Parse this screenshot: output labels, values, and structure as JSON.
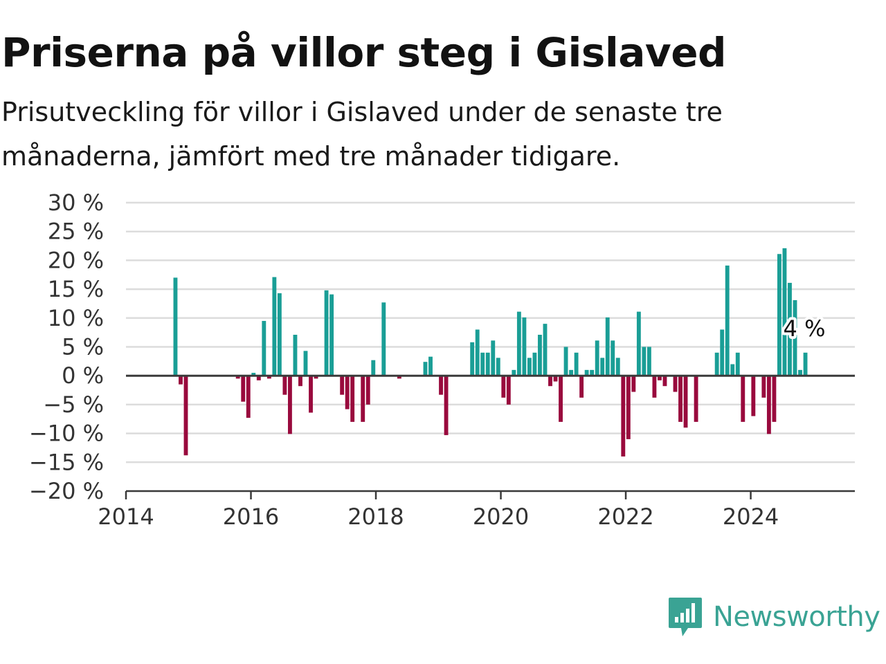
{
  "header": {
    "title": "Priserna på villor steg i Gislaved",
    "subtitle": "Prisutveckling för villor i Gislaved under de senaste tre månaderna, jämfört med tre månader tidigare."
  },
  "brand": {
    "name": "Newsworthy",
    "icon": "newsworthy-logo-icon",
    "color": "#3aa394"
  },
  "chart_data": {
    "type": "bar",
    "x_start": "2014-01",
    "x_end": "2025-09",
    "x_ticks": [
      "2014",
      "2016",
      "2018",
      "2020",
      "2022",
      "2024"
    ],
    "y_ticks": [
      "30 %",
      "25 %",
      "20 %",
      "15 %",
      "10 %",
      "5 %",
      "0 %",
      "−5 %",
      "−10 %",
      "−15 %",
      "−20 %"
    ],
    "ylim": [
      -20,
      30
    ],
    "grid": true,
    "colors": {
      "positive": "#1a9e96",
      "negative": "#990a3d"
    },
    "annotation": {
      "text": "4 %",
      "month": "2024-11"
    },
    "values": [
      [
        "2014-10",
        17
      ],
      [
        "2014-11",
        -1.5
      ],
      [
        "2014-12",
        -13.8
      ],
      [
        "2015-10",
        -0.5
      ],
      [
        "2015-11",
        -4.5
      ],
      [
        "2015-12",
        -7.3
      ],
      [
        "2016-01",
        0.5
      ],
      [
        "2016-02",
        -0.8
      ],
      [
        "2016-03",
        9.5
      ],
      [
        "2016-04",
        -0.5
      ],
      [
        "2016-05",
        17.1
      ],
      [
        "2016-06",
        14.3
      ],
      [
        "2016-07",
        -3.3
      ],
      [
        "2016-08",
        -10.1
      ],
      [
        "2016-09",
        7.1
      ],
      [
        "2016-10",
        -1.8
      ],
      [
        "2016-11",
        4.3
      ],
      [
        "2016-12",
        -6.4
      ],
      [
        "2017-01",
        -0.5
      ],
      [
        "2017-03",
        14.8
      ],
      [
        "2017-04",
        14.1
      ],
      [
        "2017-06",
        -3.3
      ],
      [
        "2017-07",
        -5.8
      ],
      [
        "2017-08",
        -8
      ],
      [
        "2017-10",
        -8
      ],
      [
        "2017-11",
        -5
      ],
      [
        "2017-12",
        2.7
      ],
      [
        "2018-02",
        12.7
      ],
      [
        "2018-05",
        -0.5
      ],
      [
        "2018-10",
        2.4
      ],
      [
        "2018-11",
        3.3
      ],
      [
        "2019-01",
        -3.3
      ],
      [
        "2019-02",
        -10.3
      ],
      [
        "2019-07",
        5.8
      ],
      [
        "2019-08",
        8
      ],
      [
        "2019-09",
        4
      ],
      [
        "2019-10",
        4
      ],
      [
        "2019-11",
        6.1
      ],
      [
        "2019-12",
        3.1
      ],
      [
        "2020-01",
        -3.8
      ],
      [
        "2020-02",
        -5
      ],
      [
        "2020-03",
        1
      ],
      [
        "2020-04",
        11.1
      ],
      [
        "2020-05",
        10.1
      ],
      [
        "2020-06",
        3.1
      ],
      [
        "2020-07",
        4
      ],
      [
        "2020-08",
        7.1
      ],
      [
        "2020-09",
        9
      ],
      [
        "2020-10",
        -1.8
      ],
      [
        "2020-11",
        -1
      ],
      [
        "2020-12",
        -8
      ],
      [
        "2021-01",
        5
      ],
      [
        "2021-02",
        1
      ],
      [
        "2021-03",
        4
      ],
      [
        "2021-04",
        -3.8
      ],
      [
        "2021-05",
        1
      ],
      [
        "2021-06",
        1
      ],
      [
        "2021-07",
        6.1
      ],
      [
        "2021-08",
        3.1
      ],
      [
        "2021-09",
        10.1
      ],
      [
        "2021-10",
        6.1
      ],
      [
        "2021-11",
        3.1
      ],
      [
        "2021-12",
        -14
      ],
      [
        "2022-01",
        -11
      ],
      [
        "2022-02",
        -2.8
      ],
      [
        "2022-03",
        11.1
      ],
      [
        "2022-04",
        5
      ],
      [
        "2022-05",
        5
      ],
      [
        "2022-06",
        -3.8
      ],
      [
        "2022-07",
        -0.8
      ],
      [
        "2022-08",
        -1.8
      ],
      [
        "2022-10",
        -2.8
      ],
      [
        "2022-11",
        -8
      ],
      [
        "2022-12",
        -9
      ],
      [
        "2023-02",
        -8
      ],
      [
        "2023-06",
        4
      ],
      [
        "2023-07",
        8
      ],
      [
        "2023-08",
        19.1
      ],
      [
        "2023-09",
        2
      ],
      [
        "2023-10",
        4
      ],
      [
        "2023-11",
        -8
      ],
      [
        "2024-01",
        -7
      ],
      [
        "2024-03",
        -3.8
      ],
      [
        "2024-04",
        -10.1
      ],
      [
        "2024-05",
        -8
      ],
      [
        "2024-06",
        21.1
      ],
      [
        "2024-07",
        22.1
      ],
      [
        "2024-08",
        16.1
      ],
      [
        "2024-09",
        13.1
      ],
      [
        "2024-10",
        1
      ],
      [
        "2024-11",
        4
      ]
    ]
  }
}
